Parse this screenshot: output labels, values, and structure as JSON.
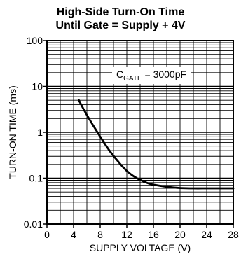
{
  "chart_data": {
    "type": "line",
    "title_line1": "High-Side Turn-On Time",
    "title_line2": "Until Gate = Supply + 4V",
    "xlabel": "SUPPLY VOLTAGE (V)",
    "ylabel": "TURN-ON TIME (ms)",
    "xlim": [
      0,
      28
    ],
    "ylim": [
      0.01,
      100
    ],
    "yscale": "log",
    "grid": true,
    "x_ticks": [
      0,
      4,
      8,
      12,
      16,
      20,
      24,
      28
    ],
    "x_tick_labels": [
      "0",
      "4",
      "8",
      "12",
      "16",
      "20",
      "24",
      "28"
    ],
    "y_ticks": [
      0.01,
      0.1,
      1,
      10,
      100
    ],
    "y_tick_labels": [
      "0.01",
      "0.1",
      "1",
      "10",
      "100"
    ],
    "annotation": {
      "prefix": "C",
      "subscript": "GATE",
      "suffix": " = 3000pF"
    },
    "series": [
      {
        "x": [
          4.8,
          5.5,
          6.5,
          7.5,
          8.5,
          9.5,
          10.5,
          11.5,
          12.5,
          13.5,
          14.5,
          15.5,
          16.5,
          18,
          20,
          22,
          24,
          26,
          28
        ],
        "y": [
          5.0,
          3.2,
          1.8,
          1.05,
          0.62,
          0.38,
          0.25,
          0.17,
          0.125,
          0.1,
          0.085,
          0.075,
          0.07,
          0.065,
          0.061,
          0.06,
          0.06,
          0.06,
          0.06
        ]
      }
    ]
  }
}
